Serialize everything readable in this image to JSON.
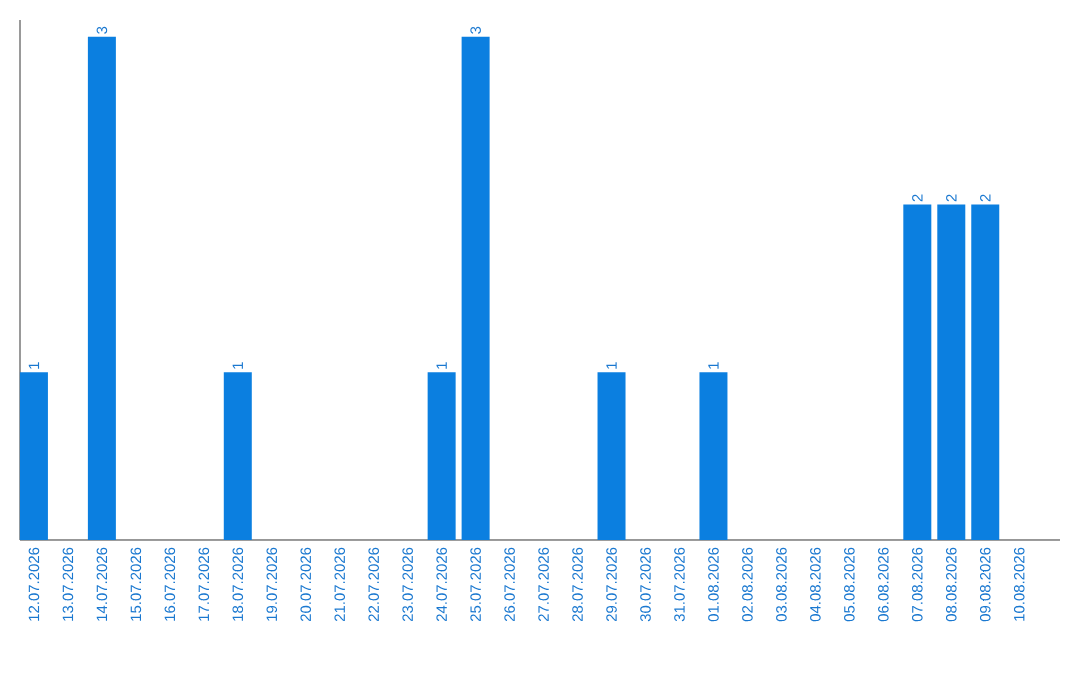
{
  "chart_data": {
    "type": "bar",
    "categories": [
      "12.07.2026",
      "13.07.2026",
      "14.07.2026",
      "15.07.2026",
      "16.07.2026",
      "17.07.2026",
      "18.07.2026",
      "19.07.2026",
      "20.07.2026",
      "21.07.2026",
      "22.07.2026",
      "23.07.2026",
      "24.07.2026",
      "25.07.2026",
      "26.07.2026",
      "27.07.2026",
      "28.07.2026",
      "29.07.2026",
      "30.07.2026",
      "31.07.2026",
      "01.08.2026",
      "02.08.2026",
      "03.08.2026",
      "04.08.2026",
      "05.08.2026",
      "06.08.2026",
      "07.08.2026",
      "08.08.2026",
      "09.08.2026",
      "10.08.2026"
    ],
    "values": [
      1,
      0,
      3,
      0,
      0,
      0,
      1,
      0,
      0,
      0,
      0,
      0,
      1,
      3,
      0,
      0,
      0,
      1,
      0,
      0,
      1,
      0,
      0,
      0,
      0,
      0,
      2,
      2,
      2,
      0
    ],
    "value_labels": [
      "1",
      null,
      "3",
      null,
      null,
      null,
      "1",
      null,
      null,
      null,
      null,
      null,
      "1",
      "3",
      null,
      null,
      null,
      "1",
      null,
      null,
      "1",
      null,
      null,
      null,
      null,
      null,
      "2",
      "2",
      "2",
      null
    ],
    "color": "#0b7fe0",
    "ylim": [
      0,
      3.1
    ],
    "tick_labels": "x",
    "grid": false
  }
}
